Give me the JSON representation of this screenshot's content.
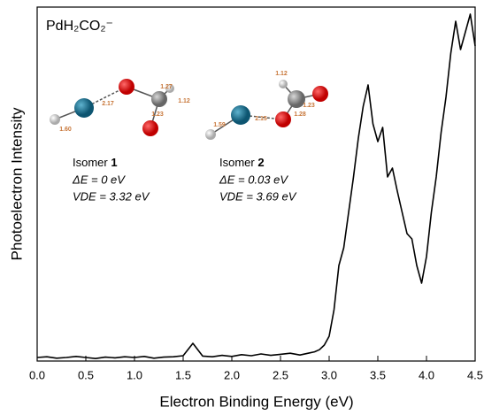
{
  "chart_data": {
    "type": "line",
    "title": "PdH₂CO₂⁻",
    "x_label": "Electron Binding Energy (eV)",
    "y_label": "Photoelectron Intensity",
    "x": [
      0,
      0.1,
      0.2,
      0.3,
      0.4,
      0.5,
      0.6,
      0.7,
      0.8,
      0.9,
      1.0,
      1.1,
      1.2,
      1.3,
      1.4,
      1.5,
      1.6,
      1.7,
      1.8,
      1.9,
      2.0,
      2.1,
      2.2,
      2.3,
      2.4,
      2.5,
      2.6,
      2.7,
      2.8,
      2.85,
      2.9,
      2.95,
      3.0,
      3.05,
      3.1,
      3.15,
      3.2,
      3.25,
      3.3,
      3.35,
      3.4,
      3.45,
      3.5,
      3.55,
      3.6,
      3.65,
      3.7,
      3.75,
      3.8,
      3.85,
      3.9,
      3.95,
      4.0,
      4.05,
      4.1,
      4.15,
      4.2,
      4.25,
      4.3,
      4.35,
      4.4,
      4.45,
      4.5
    ],
    "values": [
      1,
      1.2,
      0.8,
      1,
      1.3,
      1,
      0.7,
      1.1,
      0.9,
      1.2,
      1,
      1.3,
      0.8,
      1.1,
      1.2,
      1.5,
      5,
      1.4,
      1.2,
      1.6,
      1.3,
      1.8,
      1.5,
      2,
      1.6,
      1.9,
      2.2,
      1.7,
      2.3,
      2.6,
      3.2,
      4.5,
      7,
      14.5,
      27,
      32,
      42,
      52,
      63,
      72,
      78,
      67,
      62,
      66,
      52,
      54.5,
      48,
      42,
      36,
      34.5,
      27,
      22,
      29.5,
      42,
      52,
      64.5,
      74.5,
      87,
      96,
      88,
      93,
      98,
      89
    ],
    "color": "#000000",
    "xlim": [
      0,
      4.5
    ],
    "xticks": [
      {
        "value": 0,
        "label": "0.0"
      },
      0.5,
      {
        "value": 1,
        "label": "1.0"
      },
      1.5,
      {
        "value": 2,
        "label": "2.0"
      },
      2.5,
      {
        "value": 3,
        "label": "3.0"
      },
      3.5,
      {
        "value": 4,
        "label": "4.0"
      },
      4.5
    ],
    "ylim": [
      0,
      100
    ],
    "isomers": [
      {
        "label": "Isomer ",
        "number": "1",
        "delta_e": "ΔE = 0 eV",
        "vde": "VDE = 3.32 eV",
        "bonds": [
          "1.27",
          "2.17",
          "1.12",
          "1.23",
          "1.60"
        ]
      },
      {
        "label": "Isomer ",
        "number": "2",
        "delta_e": "ΔE = 0.03 eV",
        "vde": "VDE = 3.69 eV",
        "bonds": [
          "1.12",
          "1.23",
          "1.28",
          "2.15",
          "1.59"
        ]
      }
    ]
  }
}
